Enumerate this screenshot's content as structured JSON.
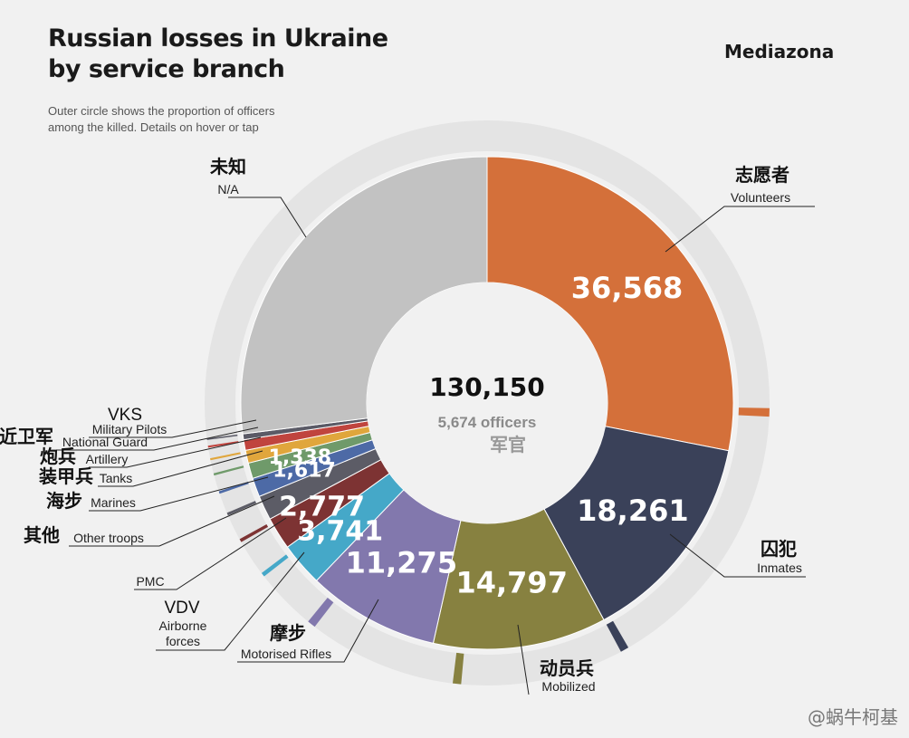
{
  "header": {
    "title_line1": "Russian losses in Ukraine",
    "title_line2": "by service branch",
    "subtitle_line1": "Outer circle shows the proportion of officers",
    "subtitle_line2": "among the killed. Details on hover or tap",
    "brand": "Mediazona"
  },
  "watermark": "@蜗牛柯基",
  "chart_data": {
    "type": "pie",
    "title": "Russian losses in Ukraine by service branch",
    "center_total": "130,150",
    "center_officers": "5,674 officers",
    "center_officers_zh": "军官",
    "total": 130150,
    "officers_total": 5674,
    "slices": [
      {
        "name": "Volunteers",
        "name_zh": "志愿者",
        "value": 36568,
        "label": "36,568",
        "color": "#d4703a",
        "officer_share": 0.5
      },
      {
        "name": "Inmates",
        "name_zh": "囚犯",
        "value": 18261,
        "label": "18,261",
        "color": "#3a4159",
        "officer_share": 0.1
      },
      {
        "name": "Mobilized",
        "name_zh": "动员兵",
        "value": 14797,
        "label": "14,797",
        "color": "#878140",
        "officer_share": 0.9
      },
      {
        "name": "Motorised Rifles",
        "name_zh": "摩步",
        "value": 11275,
        "label": "11,275",
        "color": "#8278ad",
        "officer_share": 1.0
      },
      {
        "name": "Airborne forces",
        "name_zh": "",
        "abbr": "VDV",
        "value": 3741,
        "label": "3,741",
        "color": "#45a8c8",
        "officer_share": 1.0
      },
      {
        "name": "PMC",
        "name_zh": "",
        "value": 2777,
        "label": "2,777",
        "color": "#7d3333",
        "officer_share": 0.9
      },
      {
        "name": "Other troops",
        "name_zh": "其他",
        "value": 2100,
        "label": "",
        "color": "#5c5c66",
        "officer_share": 1.0
      },
      {
        "name": "Marines",
        "name_zh": "海步",
        "value": 1617,
        "label": "1,617",
        "color": "#4d6aa6",
        "officer_share": 1.0
      },
      {
        "name": "Tanks",
        "name_zh": "装甲兵",
        "value": 1338,
        "label": "1,338",
        "color": "#6f9a6a",
        "officer_share": 1.0
      },
      {
        "name": "Artillery",
        "name_zh": "炮兵",
        "value": 1100,
        "label": "",
        "color": "#e0a63c",
        "officer_share": 1.0
      },
      {
        "name": "National Guard",
        "name_zh": "近卫军",
        "value": 900,
        "label": "",
        "color": "#c0443e",
        "officer_share": 1.0
      },
      {
        "name": "Military Pilots",
        "name_zh": "",
        "abbr": "VKS",
        "value": 500,
        "label": "",
        "color": "#5a5a66",
        "officer_share": 1.0
      },
      {
        "name": "N/A",
        "name_zh": "未知",
        "value": 35136,
        "label": "",
        "color": "#c2c2c2",
        "officer_share": 0.0
      }
    ]
  }
}
